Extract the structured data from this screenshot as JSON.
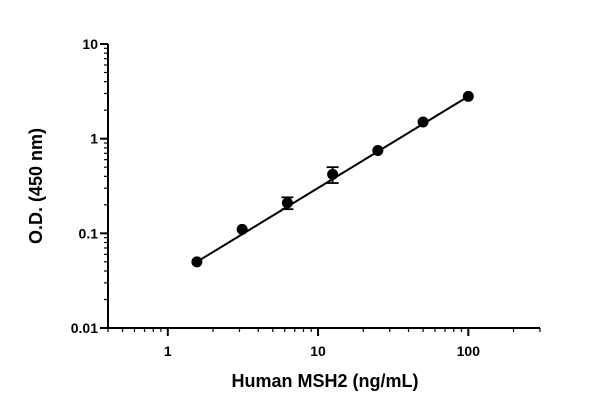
{
  "chart_data": {
    "type": "scatter",
    "xlabel": "Human MSH2 (ng/mL)",
    "ylabel": "O.D. (450 nm)",
    "x_scale": "log",
    "y_scale": "log",
    "xlim": [
      0.4,
      300
    ],
    "ylim": [
      0.01,
      10
    ],
    "x_ticks": [
      1,
      10,
      100
    ],
    "x_tick_labels": [
      "1",
      "10",
      "100"
    ],
    "y_ticks": [
      0.01,
      0.1,
      1,
      10
    ],
    "y_tick_labels": [
      "0.01",
      "0.1",
      "1",
      "10"
    ],
    "grid": false,
    "series": [
      {
        "points": [
          {
            "x": 1.5625,
            "y": 0.05,
            "err": 0
          },
          {
            "x": 3.125,
            "y": 0.11,
            "err": 0
          },
          {
            "x": 6.25,
            "y": 0.21,
            "err": 0.03
          },
          {
            "x": 12.5,
            "y": 0.42,
            "err": 0.08
          },
          {
            "x": 25,
            "y": 0.75,
            "err": 0
          },
          {
            "x": 50,
            "y": 1.5,
            "err": 0
          },
          {
            "x": 100,
            "y": 2.8,
            "err": 0
          }
        ]
      }
    ],
    "fit_line": {
      "x": [
        1.5625,
        100
      ],
      "y": [
        0.05,
        2.8
      ]
    }
  }
}
